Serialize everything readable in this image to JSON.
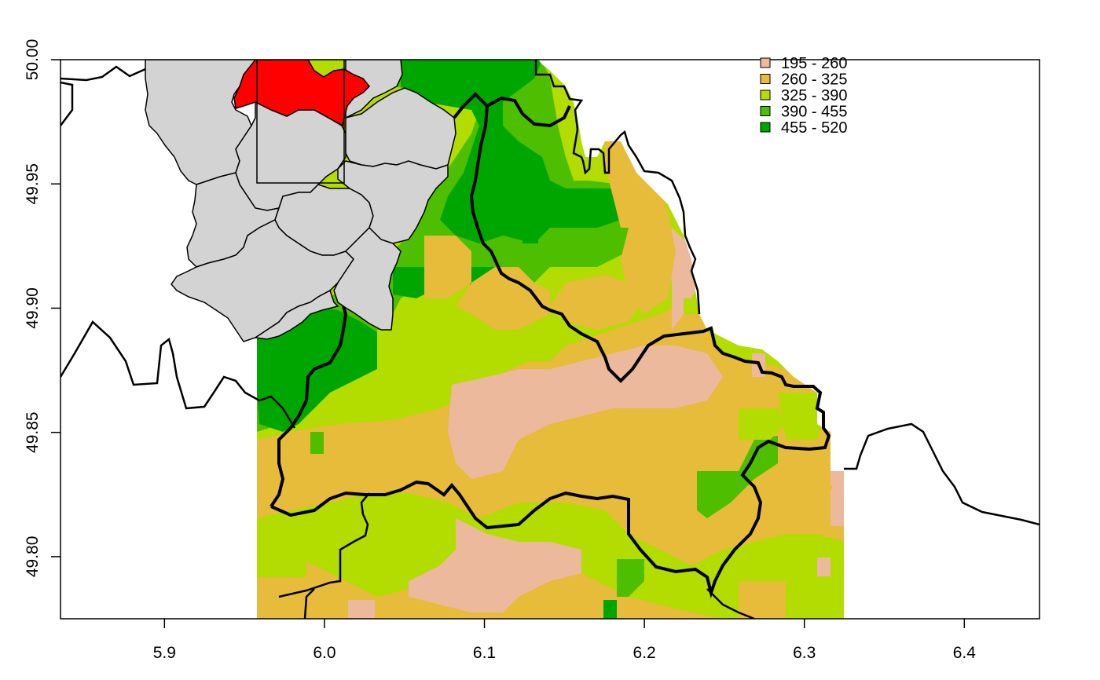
{
  "axes": {
    "x_range": [
      5.835,
      6.447
    ],
    "y_range": [
      49.775,
      50.0
    ],
    "x_ticks": [
      {
        "value": 5.9,
        "label": "5.9"
      },
      {
        "value": 6.0,
        "label": "6.0"
      },
      {
        "value": 6.1,
        "label": "6.1"
      },
      {
        "value": 6.2,
        "label": "6.2"
      },
      {
        "value": 6.3,
        "label": "6.3"
      },
      {
        "value": 6.4,
        "label": "6.4"
      }
    ],
    "y_ticks": [
      {
        "value": 49.8,
        "label": "49.80"
      },
      {
        "value": 49.85,
        "label": "49.85"
      },
      {
        "value": 49.9,
        "label": "49.90"
      },
      {
        "value": 49.95,
        "label": "49.95"
      },
      {
        "value": 50.0,
        "label": "50.00"
      }
    ]
  },
  "legend": {
    "position": "top-right",
    "entries": [
      {
        "label": "195 - 260",
        "color": "#ECB99C"
      },
      {
        "label": "260 - 325",
        "color": "#E6BC3A"
      },
      {
        "label": "325 - 390",
        "color": "#B3DC01"
      },
      {
        "label": "390 - 455",
        "color": "#4EBE00"
      },
      {
        "label": "455 - 520",
        "color": "#00A600"
      }
    ]
  },
  "colors": {
    "polygon_fill": "#D3D3D3",
    "highlight_fill": "#FF0000",
    "outline": "#000000"
  }
}
